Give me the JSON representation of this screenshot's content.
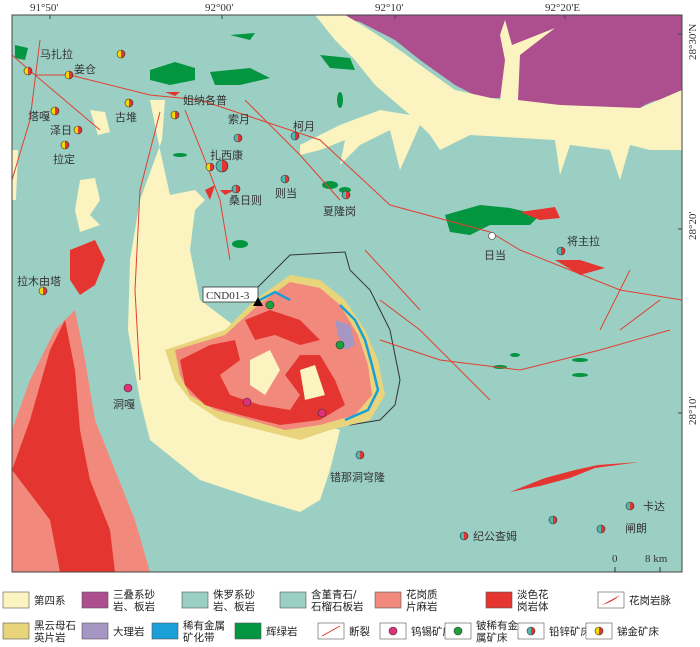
{
  "map": {
    "axes": {
      "top": [
        "91°50'",
        "92°00'",
        "92°10'",
        "92°20'E"
      ],
      "right": [
        "28°30'N",
        "28°20'",
        "28°10'"
      ]
    },
    "places": [
      "马扎拉",
      "姜仓",
      "塔嘎",
      "泽日",
      "拉定",
      "古堆",
      "姐纳各普",
      "索月",
      "柯月",
      "扎西康",
      "桑日则",
      "则当",
      "夏隆岗",
      "日当",
      "将主拉",
      "拉木由塔",
      "洞嘎",
      "错那洞穹隆",
      "卡达",
      "闸朗",
      "纪公查姆"
    ],
    "sample": "CND01-3",
    "scale": {
      "zero": "0",
      "end": "8 km"
    }
  },
  "colors": {
    "quaternary": "#fbf3c0",
    "triassic": "#ad4f8e",
    "jurassic": "#9ccfc4",
    "cordierite": "#9ccfc4",
    "granitic_gneiss": "#f2897d",
    "leucogranite": "#e53530",
    "biotite_schist": "#e8d47a",
    "marble": "#a596c4",
    "rare_metal_zone": "#1a9fd8",
    "diabase": "#03953f",
    "fault": "#e04030",
    "w_sn": "#e0307a",
    "be_rm": "#1ea03a",
    "pb_zn": [
      "#4fb8b0",
      "#e03530"
    ],
    "sb_au": [
      "#f5d800",
      "#e03530"
    ]
  },
  "legend": [
    {
      "label": "第四系",
      "icon": "swatch-quaternary"
    },
    {
      "label": "三叠系砂岩、板岩",
      "icon": "swatch-triassic"
    },
    {
      "label": "侏罗系砂岩、板岩",
      "icon": "swatch-jurassic"
    },
    {
      "label": "含堇青石/石榴石板岩",
      "icon": "swatch-cordierite-slate"
    },
    {
      "label": "花岗质片麻岩",
      "icon": "swatch-granitic-gneiss"
    },
    {
      "label": "淡色花岗岩体",
      "icon": "swatch-leucogranite"
    },
    {
      "label": "花岗岩脉",
      "icon": "granite-dike-icon"
    },
    {
      "label": "黑云母石英片岩",
      "icon": "swatch-biotite-schist"
    },
    {
      "label": "大理岩",
      "icon": "swatch-marble"
    },
    {
      "label": "稀有金属矿化带",
      "icon": "swatch-rare-metal-zone"
    },
    {
      "label": "辉绿岩",
      "icon": "swatch-diabase"
    },
    {
      "label": "断裂",
      "icon": "fault-icon"
    },
    {
      "label": "钨锡矿床",
      "icon": "w-sn-deposit-icon"
    },
    {
      "label": "铍稀有金属矿床",
      "icon": "be-rare-metal-deposit-icon"
    },
    {
      "label": "铅锌矿床",
      "icon": "pb-zn-deposit-icon"
    },
    {
      "label": "锑金矿床",
      "icon": "sb-au-deposit-icon"
    }
  ]
}
